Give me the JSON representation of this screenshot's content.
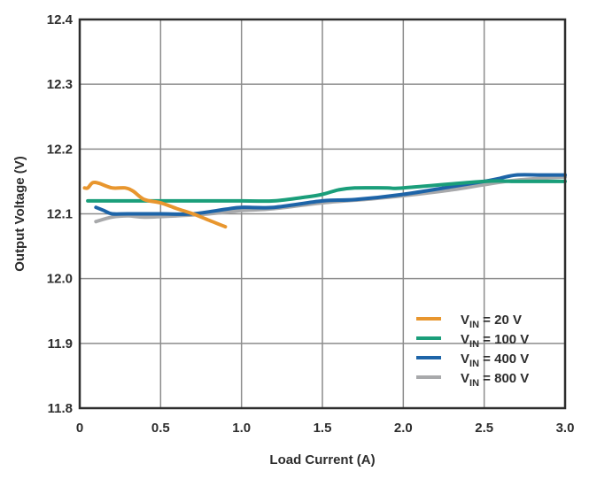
{
  "chart_data": {
    "type": "line",
    "title": "",
    "xlabel": "Load Current (A)",
    "ylabel": "Output Voltage (V)",
    "xlim": [
      0,
      3.0
    ],
    "ylim": [
      11.8,
      12.4
    ],
    "x_ticks": [
      "0",
      "0.5",
      "1.0",
      "1.5",
      "2.0",
      "2.5",
      "3.0"
    ],
    "x_tick_values": [
      0,
      0.5,
      1.0,
      1.5,
      2.0,
      2.5,
      3.0
    ],
    "y_ticks": [
      "11.8",
      "11.9",
      "12.0",
      "12.1",
      "12.2",
      "12.3",
      "12.4"
    ],
    "y_tick_values": [
      11.8,
      11.9,
      12.0,
      12.1,
      12.2,
      12.3,
      12.4
    ],
    "grid": true,
    "legend_position": "bottom-right",
    "series": [
      {
        "name": "VIN = 20 V",
        "label_main": "V",
        "label_sub": "IN",
        "label_rest": " = 20 V",
        "color": "#e8962e",
        "x": [
          0.03,
          0.05,
          0.08,
          0.12,
          0.2,
          0.28,
          0.33,
          0.4,
          0.5,
          0.6,
          0.7,
          0.8,
          0.9
        ],
        "y": [
          12.14,
          12.14,
          12.148,
          12.147,
          12.14,
          12.14,
          12.135,
          12.122,
          12.117,
          12.108,
          12.1,
          12.09,
          12.08
        ]
      },
      {
        "name": "VIN = 100 V",
        "label_main": "V",
        "label_sub": "IN",
        "label_rest": " = 100 V",
        "color": "#1a9e7a",
        "x": [
          0.05,
          0.5,
          1.0,
          1.2,
          1.4,
          1.5,
          1.6,
          1.7,
          1.9,
          2.0,
          2.5,
          2.7,
          3.0
        ],
        "y": [
          12.12,
          12.12,
          12.12,
          12.12,
          12.126,
          12.13,
          12.137,
          12.14,
          12.14,
          12.14,
          12.15,
          12.15,
          12.15
        ]
      },
      {
        "name": "VIN = 400 V",
        "label_main": "V",
        "label_sub": "IN",
        "label_rest": " = 400 V",
        "color": "#1d64a8",
        "x": [
          0.1,
          0.15,
          0.2,
          0.3,
          0.5,
          0.7,
          0.9,
          1.0,
          1.2,
          1.5,
          1.7,
          2.0,
          2.3,
          2.5,
          2.6,
          2.7,
          2.85,
          3.0
        ],
        "y": [
          12.11,
          12.105,
          12.1,
          12.1,
          12.1,
          12.1,
          12.107,
          12.11,
          12.11,
          12.12,
          12.122,
          12.13,
          12.142,
          12.15,
          12.155,
          12.16,
          12.16,
          12.16
        ]
      },
      {
        "name": "VIN = 800 V",
        "label_main": "V",
        "label_sub": "IN",
        "label_rest": " = 800 V",
        "color": "#a8a9ab",
        "x": [
          0.1,
          0.2,
          0.3,
          0.4,
          0.6,
          0.8,
          1.0,
          1.2,
          1.5,
          1.8,
          2.0,
          2.3,
          2.5,
          2.7,
          3.0
        ],
        "y": [
          12.088,
          12.095,
          12.097,
          12.095,
          12.097,
          12.1,
          12.105,
          12.108,
          12.117,
          12.123,
          12.128,
          12.137,
          12.145,
          12.152,
          12.157
        ]
      }
    ]
  }
}
